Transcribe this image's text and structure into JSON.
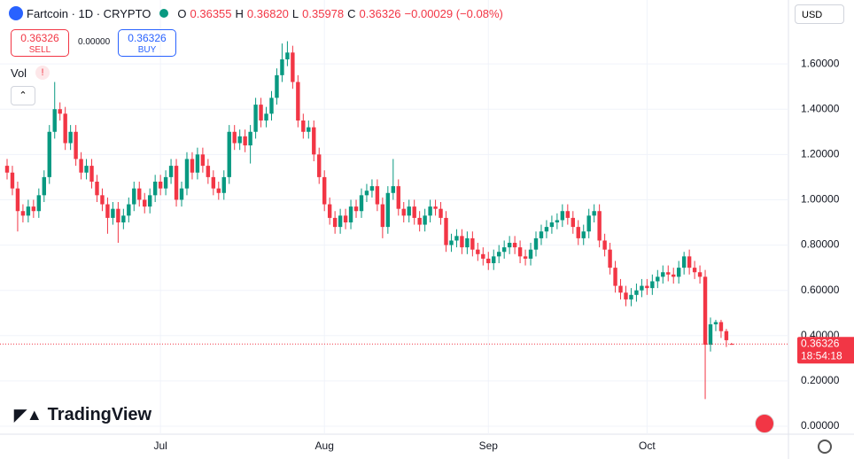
{
  "toolbar": {
    "symbol": "Fartcoin · 1D · CRYPTO",
    "o_label": "O",
    "o": "0.36355",
    "h_label": "H",
    "h": "0.36820",
    "l_label": "L",
    "l": "0.35978",
    "c_label": "C",
    "c": "0.36326",
    "change": "−0.00029 (−0.08%)",
    "sell": "SELL",
    "buy": "BUY",
    "sell_price": "0.36326",
    "buy_price": "0.36326",
    "spread": "0.00000",
    "vol": "Vol",
    "currency": "USD",
    "brand": "TradingView"
  },
  "chart_data": {
    "type": "candlestick",
    "up_color": "#089981",
    "down_color": "#f23645",
    "grid": true,
    "categories": [
      null,
      null,
      null,
      null,
      null,
      null,
      null,
      null,
      null,
      null,
      null,
      null,
      null,
      null,
      null,
      null,
      null,
      null,
      null,
      null,
      null,
      null,
      null,
      null,
      null,
      null,
      null,
      null,
      null,
      "Jul",
      null,
      null,
      null,
      null,
      null,
      null,
      null,
      null,
      null,
      null,
      null,
      null,
      null,
      null,
      null,
      null,
      null,
      null,
      null,
      null,
      null,
      null,
      null,
      null,
      null,
      null,
      null,
      null,
      null,
      null,
      "Aug",
      null,
      null,
      null,
      null,
      null,
      null,
      null,
      null,
      null,
      null,
      null,
      null,
      null,
      null,
      null,
      null,
      null,
      null,
      null,
      null,
      null,
      null,
      null,
      null,
      null,
      null,
      null,
      null,
      null,
      null,
      "Sep",
      null,
      null,
      null,
      null,
      null,
      null,
      null,
      null,
      null,
      null,
      null,
      null,
      null,
      null,
      null,
      null,
      null,
      null,
      null,
      null,
      null,
      null,
      null,
      null,
      null,
      null,
      null,
      null,
      null,
      "Oct",
      null,
      null,
      null,
      null,
      null,
      null,
      null,
      null,
      null,
      null,
      null,
      null,
      null,
      null,
      null,
      null
    ],
    "open": [
      1.15,
      1.12,
      1.05,
      0.95,
      0.93,
      0.97,
      0.95,
      1.02,
      1.1,
      1.3,
      1.4,
      1.38,
      1.25,
      1.3,
      1.18,
      1.12,
      1.15,
      1.08,
      1.02,
      0.98,
      0.92,
      0.96,
      0.9,
      0.93,
      0.98,
      1.05,
      1.0,
      0.97,
      1.02,
      1.08,
      1.05,
      1.1,
      1.15,
      1.0,
      1.05,
      1.18,
      1.12,
      1.2,
      1.15,
      1.1,
      1.05,
      1.03,
      1.1,
      1.3,
      1.25,
      1.28,
      1.24,
      1.3,
      1.42,
      1.35,
      1.38,
      1.45,
      1.55,
      1.62,
      1.65,
      1.52,
      1.35,
      1.3,
      1.32,
      1.2,
      1.1,
      0.98,
      0.92,
      0.88,
      0.93,
      0.9,
      0.97,
      0.95,
      1.02,
      1.04,
      1.06,
      0.98,
      0.88,
      1.03,
      1.06,
      0.96,
      0.93,
      0.97,
      0.92,
      0.89,
      0.93,
      0.97,
      0.96,
      0.92,
      0.8,
      0.82,
      0.84,
      0.79,
      0.83,
      0.78,
      0.76,
      0.74,
      0.72,
      0.75,
      0.77,
      0.79,
      0.81,
      0.79,
      0.75,
      0.74,
      0.78,
      0.83,
      0.86,
      0.88,
      0.9,
      0.91,
      0.95,
      0.92,
      0.88,
      0.83,
      0.86,
      0.93,
      0.95,
      0.82,
      0.78,
      0.7,
      0.62,
      0.59,
      0.56,
      0.58,
      0.6,
      0.62,
      0.61,
      0.64,
      0.66,
      0.68,
      0.67,
      0.66,
      0.7,
      0.75,
      0.7,
      0.68,
      0.66,
      0.36,
      0.45,
      0.46,
      0.42,
      0.36355
    ],
    "high": [
      1.18,
      1.15,
      1.08,
      0.98,
      1.0,
      1.0,
      1.05,
      1.13,
      1.33,
      1.52,
      1.43,
      1.41,
      1.33,
      1.33,
      1.21,
      1.18,
      1.18,
      1.11,
      1.05,
      1.01,
      0.99,
      0.99,
      0.96,
      1.01,
      1.08,
      1.08,
      1.03,
      1.05,
      1.11,
      1.11,
      1.13,
      1.18,
      1.18,
      1.08,
      1.21,
      1.21,
      1.23,
      1.23,
      1.18,
      1.13,
      1.08,
      1.13,
      1.33,
      1.33,
      1.31,
      1.31,
      1.33,
      1.45,
      1.45,
      1.41,
      1.48,
      1.58,
      1.69,
      1.7,
      1.68,
      1.55,
      1.38,
      1.35,
      1.35,
      1.23,
      1.13,
      1.01,
      0.95,
      0.96,
      0.96,
      1.0,
      1.0,
      1.05,
      1.07,
      1.09,
      1.09,
      1.01,
      1.06,
      1.18,
      1.09,
      0.99,
      1.0,
      1.0,
      0.95,
      0.96,
      1.0,
      1.0,
      0.99,
      0.95,
      0.85,
      0.87,
      0.87,
      0.86,
      0.86,
      0.81,
      0.79,
      0.77,
      0.78,
      0.8,
      0.82,
      0.84,
      0.84,
      0.82,
      0.78,
      0.81,
      0.86,
      0.89,
      0.91,
      0.93,
      0.94,
      0.98,
      0.98,
      0.95,
      0.91,
      0.89,
      0.96,
      0.98,
      0.98,
      0.85,
      0.81,
      0.73,
      0.65,
      0.62,
      0.61,
      0.63,
      0.65,
      0.65,
      0.67,
      0.69,
      0.71,
      0.71,
      0.7,
      0.73,
      0.77,
      0.78,
      0.73,
      0.71,
      0.69,
      0.48,
      0.47,
      0.47,
      0.43,
      0.3682
    ],
    "low": [
      1.09,
      1.02,
      0.86,
      0.9,
      0.9,
      0.92,
      0.92,
      0.99,
      1.07,
      1.27,
      1.35,
      1.22,
      1.22,
      1.15,
      1.09,
      1.09,
      1.05,
      0.99,
      0.95,
      0.85,
      0.89,
      0.81,
      0.87,
      0.9,
      0.95,
      0.97,
      0.94,
      0.94,
      0.99,
      1.02,
      1.02,
      1.07,
      0.97,
      0.97,
      1.02,
      1.09,
      1.09,
      1.12,
      1.07,
      1.02,
      1.0,
      1.0,
      1.07,
      1.22,
      1.22,
      1.21,
      1.16,
      1.27,
      1.32,
      1.32,
      1.35,
      1.42,
      1.52,
      1.59,
      1.49,
      1.32,
      1.27,
      1.27,
      1.17,
      1.07,
      0.95,
      0.89,
      0.85,
      0.85,
      0.87,
      0.87,
      0.92,
      0.92,
      0.99,
      1.01,
      0.95,
      0.83,
      0.85,
      1.0,
      0.93,
      0.9,
      0.9,
      0.89,
      0.86,
      0.86,
      0.9,
      0.93,
      0.89,
      0.77,
      0.77,
      0.79,
      0.76,
      0.76,
      0.75,
      0.73,
      0.71,
      0.69,
      0.69,
      0.72,
      0.74,
      0.76,
      0.76,
      0.72,
      0.71,
      0.71,
      0.75,
      0.8,
      0.83,
      0.85,
      0.87,
      0.88,
      0.89,
      0.85,
      0.8,
      0.8,
      0.83,
      0.9,
      0.79,
      0.75,
      0.67,
      0.59,
      0.56,
      0.53,
      0.53,
      0.55,
      0.57,
      0.58,
      0.58,
      0.61,
      0.63,
      0.64,
      0.63,
      0.63,
      0.67,
      0.67,
      0.65,
      0.63,
      0.12,
      0.33,
      0.42,
      0.39,
      0.35,
      0.35978
    ],
    "close": [
      1.12,
      1.05,
      0.95,
      0.93,
      0.97,
      0.95,
      1.02,
      1.1,
      1.3,
      1.4,
      1.38,
      1.25,
      1.3,
      1.18,
      1.12,
      1.15,
      1.08,
      1.02,
      0.98,
      0.92,
      0.96,
      0.9,
      0.93,
      0.98,
      1.05,
      1.0,
      0.97,
      1.02,
      1.08,
      1.05,
      1.1,
      1.15,
      1.0,
      1.05,
      1.18,
      1.12,
      1.2,
      1.15,
      1.1,
      1.05,
      1.03,
      1.1,
      1.3,
      1.25,
      1.28,
      1.24,
      1.3,
      1.42,
      1.35,
      1.38,
      1.45,
      1.55,
      1.62,
      1.65,
      1.52,
      1.35,
      1.3,
      1.32,
      1.2,
      1.1,
      0.98,
      0.92,
      0.88,
      0.93,
      0.9,
      0.97,
      0.95,
      1.02,
      1.04,
      1.06,
      0.98,
      0.88,
      1.03,
      1.06,
      0.96,
      0.93,
      0.97,
      0.92,
      0.89,
      0.93,
      0.97,
      0.96,
      0.92,
      0.8,
      0.82,
      0.84,
      0.79,
      0.83,
      0.78,
      0.76,
      0.74,
      0.72,
      0.75,
      0.77,
      0.79,
      0.81,
      0.79,
      0.75,
      0.74,
      0.78,
      0.83,
      0.86,
      0.88,
      0.9,
      0.91,
      0.95,
      0.92,
      0.88,
      0.83,
      0.86,
      0.93,
      0.95,
      0.82,
      0.78,
      0.7,
      0.62,
      0.59,
      0.56,
      0.58,
      0.6,
      0.62,
      0.61,
      0.64,
      0.66,
      0.68,
      0.67,
      0.66,
      0.7,
      0.75,
      0.7,
      0.68,
      0.66,
      0.36,
      0.45,
      0.46,
      0.42,
      0.38,
      0.36326
    ],
    "countdown": "18:54:18",
    "ylim": [
      -0.035,
      1.882
    ],
    "yticks": [
      {
        "value": 0,
        "label": "0.00000"
      },
      {
        "value": 0.2,
        "label": "0.20000"
      },
      {
        "value": 0.4,
        "label": "0.40000"
      },
      {
        "value": 0.6,
        "label": "0.60000"
      },
      {
        "value": 0.8,
        "label": "0.80000"
      },
      {
        "value": 1,
        "label": "1.00000"
      },
      {
        "value": 1.2,
        "label": "1.20000"
      },
      {
        "value": 1.4,
        "label": "1.40000"
      },
      {
        "value": 1.6,
        "label": "1.60000"
      }
    ]
  }
}
